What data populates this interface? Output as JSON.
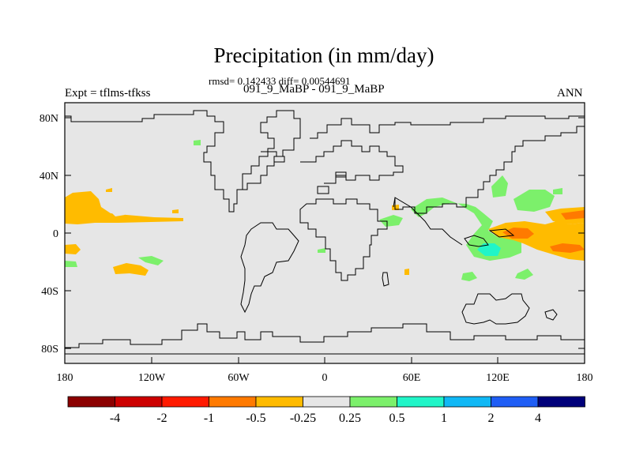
{
  "title": "Precipitation (in mm/day)",
  "stats": "rmsd= 0.142433 diff= 0.00544691",
  "subtitle": "091_9_MaBP - 091_9_MaBP",
  "experiment": "Expt = tflms-tfkss",
  "season": "ANN",
  "lat_ticks": [
    "80N",
    "40N",
    "0",
    "40S",
    "80S"
  ],
  "lon_ticks": [
    "180",
    "120W",
    "60W",
    "0",
    "60E",
    "120E",
    "180"
  ],
  "colorbar": {
    "colors": [
      "#8b0000",
      "#cc0000",
      "#ff1a00",
      "#ff7a00",
      "#ffbb00",
      "#e6e6e6",
      "#7cf06b",
      "#21f5c8",
      "#10b8f5",
      "#1f5ef5",
      "#00007a"
    ],
    "labels": [
      "-4",
      "-2",
      "-1",
      "-0.5",
      "-0.25",
      "0.25",
      "0.5",
      "1",
      "2",
      "4"
    ]
  },
  "colors": {
    "background": "#e6e6e6",
    "coast": "#000000"
  }
}
